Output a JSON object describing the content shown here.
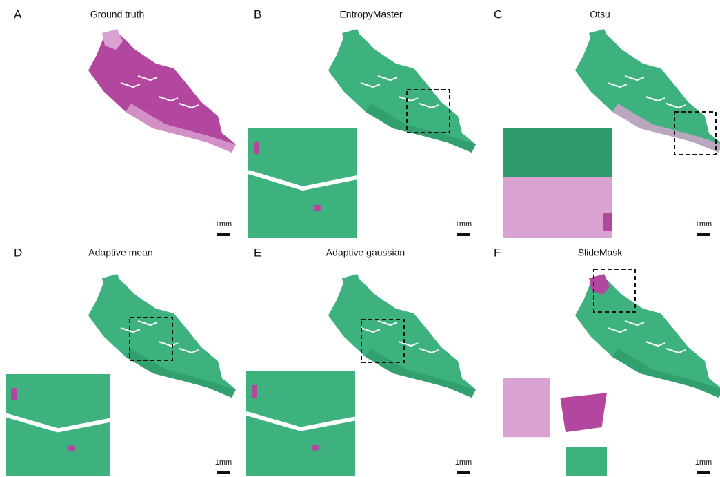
{
  "panels": [
    {
      "letter": "A",
      "title": "Ground truth",
      "scale_bar": "1mm"
    },
    {
      "letter": "B",
      "title": "EntropyMaster",
      "scale_bar": "1mm"
    },
    {
      "letter": "C",
      "title": "Otsu",
      "scale_bar": "1mm"
    },
    {
      "letter": "D",
      "title": "Adaptive mean",
      "scale_bar": "1mm"
    },
    {
      "letter": "E",
      "title": "Adaptive gaussian",
      "scale_bar": "1mm"
    },
    {
      "letter": "F",
      "title": "SlideMask",
      "scale_bar": "1mm"
    }
  ]
}
